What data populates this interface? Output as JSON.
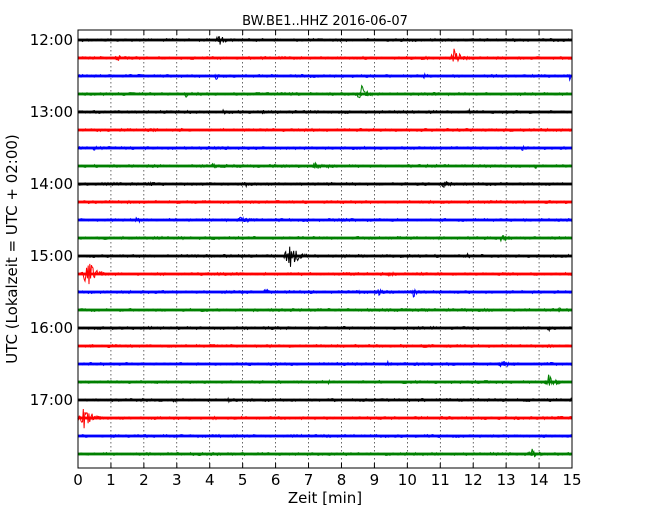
{
  "chart_data": {
    "type": "line",
    "title": "BW.BE1..HHZ 2016-06-07",
    "xlabel": "Zeit  [min]",
    "ylabel": "UTC (Lokalzeit = UTC + 02:00)",
    "xlim": [
      0,
      15
    ],
    "x_ticks": [
      "0",
      "1",
      "2",
      "3",
      "4",
      "5",
      "6",
      "7",
      "8",
      "9",
      "10",
      "11",
      "12",
      "13",
      "14",
      "15"
    ],
    "y_tick_labels": [
      "12:00",
      "13:00",
      "14:00",
      "15:00",
      "16:00",
      "17:00"
    ],
    "grid": "vertical dotted lines at each minute",
    "trace_colors": [
      "#000000",
      "#ff0000",
      "#0000ff",
      "#008000"
    ],
    "traces": [
      {
        "start": "12:00",
        "events": [
          [
            4.3,
            5,
            0.6
          ]
        ]
      },
      {
        "start": "12:15",
        "events": [
          [
            1.2,
            4,
            0.3
          ],
          [
            11.45,
            12,
            0.6
          ]
        ]
      },
      {
        "start": "12:30",
        "events": [
          [
            4.2,
            4,
            0.3
          ],
          [
            10.5,
            3,
            0.3
          ],
          [
            14.9,
            6,
            0.3
          ]
        ]
      },
      {
        "start": "12:45",
        "events": [
          [
            3.3,
            4,
            0.3
          ],
          [
            8.6,
            9,
            0.6
          ],
          [
            10.8,
            3,
            0.3
          ]
        ]
      },
      {
        "start": "13:00",
        "events": [
          [
            4.4,
            4,
            0.3
          ],
          [
            5.6,
            3,
            0.3
          ],
          [
            11.9,
            3,
            0.3
          ]
        ]
      },
      {
        "start": "13:15",
        "events": [
          [
            2.3,
            3,
            0.3
          ]
        ]
      },
      {
        "start": "13:30",
        "events": [
          [
            0.5,
            3,
            0.3
          ],
          [
            13.5,
            3,
            0.3
          ]
        ]
      },
      {
        "start": "13:45",
        "events": [
          [
            4.1,
            4,
            0.3
          ],
          [
            7.2,
            4,
            0.6
          ],
          [
            7.6,
            3,
            0.3
          ],
          [
            13.9,
            3,
            0.3
          ]
        ]
      },
      {
        "start": "14:00",
        "events": [
          [
            2.2,
            3,
            0.3
          ],
          [
            5.1,
            3,
            0.3
          ],
          [
            11.1,
            5,
            0.6
          ]
        ]
      },
      {
        "start": "14:15",
        "events": []
      },
      {
        "start": "14:30",
        "events": [
          [
            1.8,
            3,
            0.6
          ],
          [
            5.0,
            6,
            0.6
          ],
          [
            8.1,
            3,
            0.3
          ]
        ]
      },
      {
        "start": "14:45",
        "events": [
          [
            2.4,
            2,
            0.3
          ],
          [
            11.0,
            3,
            0.3
          ],
          [
            12.9,
            5,
            0.6
          ]
        ]
      },
      {
        "start": "15:00",
        "events": [
          [
            6.45,
            11,
            0.8
          ],
          [
            11.8,
            4,
            0.3
          ]
        ]
      },
      {
        "start": "15:15",
        "events": [
          [
            0.3,
            14,
            0.7
          ],
          [
            9.5,
            3,
            0.5
          ]
        ]
      },
      {
        "start": "15:30",
        "events": [
          [
            5.7,
            4,
            0.3
          ],
          [
            8.5,
            3,
            0.3
          ],
          [
            9.1,
            4,
            0.6
          ],
          [
            10.2,
            7,
            0.3
          ]
        ]
      },
      {
        "start": "15:45",
        "events": [
          [
            10.5,
            2,
            0.3
          ],
          [
            14.6,
            3,
            0.3
          ]
        ]
      },
      {
        "start": "16:00",
        "events": [
          [
            14.3,
            3,
            0.3
          ]
        ]
      },
      {
        "start": "16:15",
        "events": [
          [
            0.4,
            3,
            0.3
          ],
          [
            2.8,
            2,
            0.3
          ]
        ]
      },
      {
        "start": "16:30",
        "events": [
          [
            9.4,
            3,
            0.3
          ],
          [
            12.9,
            4,
            0.8
          ]
        ]
      },
      {
        "start": "16:45",
        "events": [
          [
            7.6,
            2,
            0.3
          ],
          [
            14.3,
            8,
            0.6
          ]
        ]
      },
      {
        "start": "17:00",
        "events": [
          [
            2.9,
            3,
            0.3
          ],
          [
            4.6,
            3,
            0.3
          ],
          [
            15.0,
            4,
            0.3
          ]
        ]
      },
      {
        "start": "17:15",
        "events": [
          [
            0.2,
            12,
            0.7
          ],
          [
            13.7,
            2,
            0.3
          ]
        ]
      },
      {
        "start": "17:30",
        "events": []
      },
      {
        "start": "17:45",
        "events": [
          [
            13.8,
            6,
            0.6
          ]
        ]
      }
    ]
  }
}
